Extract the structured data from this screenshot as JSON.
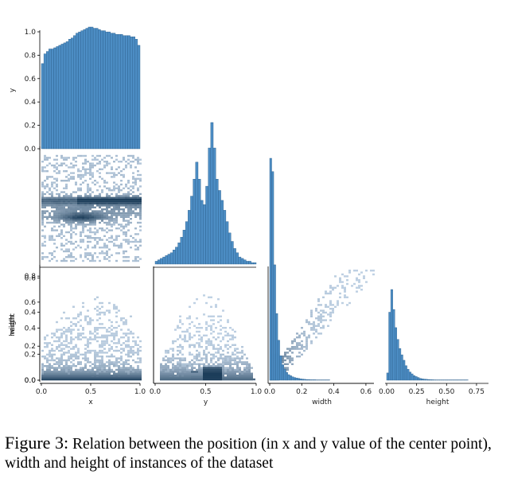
{
  "chart_data": {
    "type": "pairplot",
    "variables": [
      "x",
      "y",
      "width",
      "height"
    ],
    "colors": {
      "bar_fill": "#4c8dc4",
      "bar_edge": "#2c5f8c",
      "density_light": "#d6e6f7",
      "density_dark": "#1c3d5a"
    },
    "axes": {
      "x": {
        "range": [
          0.0,
          1.0
        ],
        "ticks": [
          "0.0",
          "0.5",
          "1.0"
        ]
      },
      "y": {
        "range": [
          0.0,
          1.0
        ],
        "ticks": [
          "0.0",
          "0.5",
          "1.0"
        ]
      },
      "width": {
        "range": [
          0.0,
          0.65
        ],
        "ticks": [
          "0.0",
          "0.2",
          "0.4",
          "0.6"
        ]
      },
      "height": {
        "range": [
          0.0,
          0.85
        ],
        "ticks": [
          "0.00",
          "0.25",
          "0.50",
          "0.75"
        ]
      }
    },
    "row_ticks": {
      "y": [
        "0.0",
        "0.2",
        "0.4",
        "0.6",
        "0.8",
        "1.0"
      ],
      "width": [
        "0.0",
        "0.2",
        "0.4",
        "0.6"
      ],
      "height": [
        "0.0",
        "0.2",
        "0.4",
        "0.6",
        "0.8"
      ]
    },
    "row_tick_values": {
      "y": [
        0.0,
        0.2,
        0.4,
        0.6,
        0.8,
        1.0
      ],
      "width": [
        0.0,
        0.2,
        0.4,
        0.6
      ],
      "height": [
        0.0,
        0.2,
        0.4,
        0.6,
        0.8
      ]
    },
    "col_tick_values": {
      "x": [
        0.0,
        0.5,
        1.0
      ],
      "y": [
        0.0,
        0.5,
        1.0
      ],
      "width": [
        0.0,
        0.2,
        0.4,
        0.6
      ],
      "height": [
        0.0,
        0.25,
        0.5,
        0.75
      ]
    },
    "diag_histograms": {
      "x": {
        "bin_start": 0.0,
        "bin_width": 0.025,
        "rel_counts": [
          0.7,
          0.78,
          0.8,
          0.82,
          0.82,
          0.83,
          0.84,
          0.85,
          0.86,
          0.87,
          0.88,
          0.9,
          0.91,
          0.93,
          0.95,
          0.96,
          0.97,
          0.98,
          0.99,
          1.0,
          1.0,
          0.99,
          0.99,
          0.98,
          0.97,
          0.97,
          0.96,
          0.96,
          0.95,
          0.95,
          0.94,
          0.94,
          0.94,
          0.93,
          0.93,
          0.93,
          0.92,
          0.92,
          0.9,
          0.85
        ]
      },
      "y": {
        "bin_start": 0.0,
        "bin_width": 0.025,
        "rel_counts": [
          0.02,
          0.03,
          0.04,
          0.05,
          0.06,
          0.07,
          0.08,
          0.1,
          0.12,
          0.15,
          0.19,
          0.24,
          0.3,
          0.38,
          0.48,
          0.6,
          0.72,
          0.6,
          0.45,
          0.42,
          0.55,
          0.82,
          1.0,
          0.82,
          0.6,
          0.52,
          0.45,
          0.38,
          0.3,
          0.22,
          0.16,
          0.11,
          0.08,
          0.05,
          0.04,
          0.03,
          0.02,
          0.02,
          0.01,
          0.01
        ]
      },
      "width": {
        "bin_start": 0.0,
        "bin_width": 0.0125,
        "rel_counts": [
          1.0,
          0.94,
          0.52,
          0.3,
          0.18,
          0.11,
          0.07,
          0.05,
          0.035,
          0.025,
          0.02,
          0.015,
          0.012,
          0.01,
          0.008,
          0.006,
          0.005,
          0.004,
          0.003,
          0.003,
          0.002,
          0.002,
          0.002,
          0.001,
          0.001,
          0.001,
          0.001,
          0.001,
          0.001,
          0.001
        ]
      },
      "height": {
        "bin_start": 0.0,
        "bin_width": 0.017,
        "rel_counts": [
          0.08,
          0.75,
          1.0,
          0.78,
          0.58,
          0.45,
          0.35,
          0.28,
          0.22,
          0.16,
          0.12,
          0.09,
          0.07,
          0.05,
          0.04,
          0.03,
          0.02,
          0.015,
          0.012,
          0.01,
          0.008,
          0.006,
          0.005,
          0.004,
          0.003,
          0.002,
          0.002,
          0.001,
          0.001,
          0.001,
          0.001,
          0.001,
          0.001,
          0.001,
          0.001,
          0.001,
          0.001,
          0.001,
          0.001,
          0.001
        ]
      }
    }
  },
  "caption": {
    "label": "Figure 3:",
    "text": " Relation between the position (in x and y value of the center point), width and height of instances of the dataset"
  }
}
